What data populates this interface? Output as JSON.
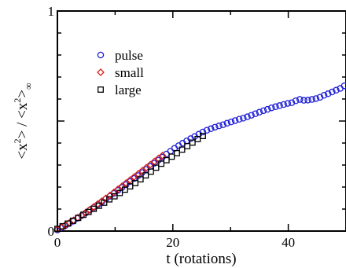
{
  "chart_data": {
    "type": "scatter",
    "xlabel": "t (rotations)",
    "ylabel": {
      "open": "<x",
      "exp1": "2",
      "mid": "> / <x",
      "exp2": "2",
      "close": ">",
      "sub": "∞"
    },
    "xlim": [
      0,
      50
    ],
    "ylim": [
      0,
      1
    ],
    "x_ticks": [
      {
        "value": 0,
        "label": "0"
      },
      {
        "value": 20,
        "label": "20"
      },
      {
        "value": 40,
        "label": "40"
      }
    ],
    "y_ticks": [
      {
        "value": 0,
        "label": "0"
      },
      {
        "value": 1,
        "label": "1"
      }
    ],
    "legend_position": "top-left",
    "grid": false,
    "series": [
      {
        "name": "pulse",
        "marker": "circle",
        "color": "#1f1fd6",
        "x": [
          0,
          0.7,
          1.4,
          2.1,
          2.8,
          3.5,
          4.2,
          4.9,
          5.6,
          6.3,
          7,
          7.7,
          8.4,
          9.1,
          9.8,
          10.5,
          11.2,
          11.9,
          12.6,
          13.3,
          14,
          14.7,
          15.4,
          16.1,
          16.8,
          17.5,
          18.2,
          18.9,
          19.6,
          20.3,
          21,
          21.7,
          22.4,
          23.1,
          23.8,
          24.5,
          25.2,
          25.9,
          26.6,
          27.3,
          28,
          28.7,
          29.4,
          30.1,
          30.8,
          31.5,
          32.2,
          32.9,
          33.6,
          34.3,
          35,
          35.7,
          36.4,
          37.1,
          37.8,
          38.5,
          39.2,
          39.9,
          40.6,
          41.3,
          42,
          42.7,
          43.4,
          44.1,
          44.8,
          45.5,
          46.2,
          46.9,
          47.6,
          48.3,
          49,
          49.7
        ],
        "y": [
          0.005,
          0.015,
          0.025,
          0.035,
          0.045,
          0.058,
          0.07,
          0.082,
          0.095,
          0.107,
          0.12,
          0.133,
          0.146,
          0.158,
          0.171,
          0.185,
          0.198,
          0.211,
          0.225,
          0.239,
          0.252,
          0.266,
          0.28,
          0.294,
          0.308,
          0.322,
          0.336,
          0.35,
          0.363,
          0.376,
          0.388,
          0.399,
          0.41,
          0.42,
          0.43,
          0.44,
          0.45,
          0.458,
          0.465,
          0.472,
          0.478,
          0.483,
          0.49,
          0.496,
          0.502,
          0.508,
          0.513,
          0.519,
          0.526,
          0.533,
          0.54,
          0.547,
          0.553,
          0.56,
          0.565,
          0.57,
          0.575,
          0.58,
          0.583,
          0.592,
          0.598,
          0.594,
          0.595,
          0.598,
          0.602,
          0.608,
          0.617,
          0.624,
          0.632,
          0.64,
          0.648,
          0.66
        ]
      },
      {
        "name": "small",
        "marker": "diamond",
        "color": "#d62020",
        "x": [
          0,
          0.7,
          1.4,
          2.1,
          2.8,
          3.5,
          4.2,
          4.9,
          5.6,
          6.3,
          7,
          7.7,
          8.4,
          9.1,
          9.8,
          10.5,
          11.2,
          11.9,
          12.6,
          13.3,
          14,
          14.7,
          15.4,
          16.1,
          16.8,
          17.5,
          18.2
        ],
        "y": [
          0.008,
          0.018,
          0.028,
          0.038,
          0.049,
          0.06,
          0.072,
          0.084,
          0.097,
          0.11,
          0.123,
          0.136,
          0.149,
          0.162,
          0.176,
          0.19,
          0.204,
          0.218,
          0.232,
          0.246,
          0.26,
          0.274,
          0.288,
          0.302,
          0.316,
          0.33,
          0.343
        ]
      },
      {
        "name": "large",
        "marker": "square",
        "color": "#000000",
        "x": [
          0,
          0.9,
          1.8,
          2.7,
          3.6,
          4.5,
          5.4,
          6.3,
          7.2,
          8.1,
          9,
          9.9,
          10.8,
          11.7,
          12.6,
          13.5,
          14.4,
          15.3,
          16.2,
          17.1,
          18,
          18.9,
          19.8,
          20.7,
          21.6,
          22.5,
          23.4,
          24.3,
          25.2
        ],
        "y": [
          0.01,
          0.022,
          0.034,
          0.047,
          0.06,
          0.074,
          0.087,
          0.101,
          0.115,
          0.129,
          0.144,
          0.158,
          0.173,
          0.188,
          0.203,
          0.218,
          0.235,
          0.253,
          0.27,
          0.288,
          0.306,
          0.322,
          0.338,
          0.354,
          0.37,
          0.386,
          0.402,
          0.418,
          0.432
        ]
      }
    ]
  }
}
